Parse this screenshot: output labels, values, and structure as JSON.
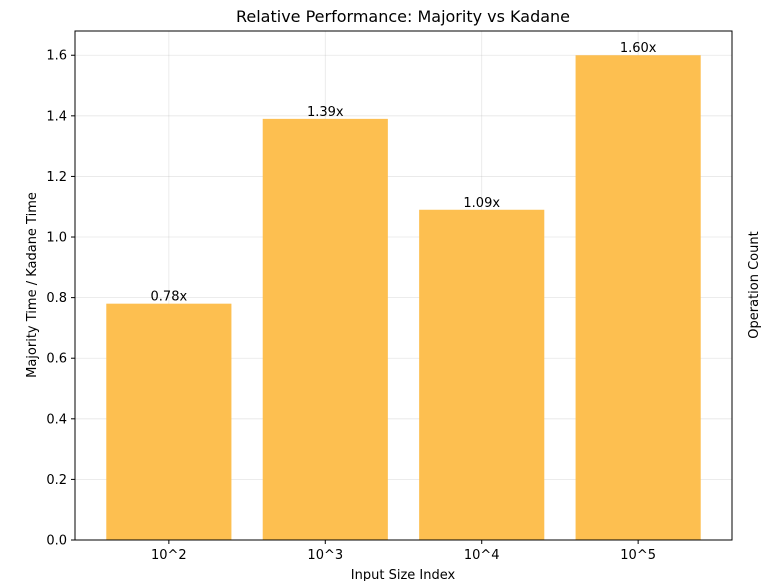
{
  "chart_data": {
    "type": "bar",
    "title": "Relative Performance: Majority vs Kadane",
    "xlabel": "Input Size Index",
    "ylabel": "Majority Time / Kadane Time",
    "right_label": "Operation Count",
    "categories": [
      "10^2",
      "10^3",
      "10^4",
      "10^5"
    ],
    "values": [
      0.78,
      1.39,
      1.09,
      1.6
    ],
    "data_labels": [
      "0.78x",
      "1.39x",
      "1.09x",
      "1.60x"
    ],
    "ylim": [
      0,
      1.68
    ],
    "yticks": [
      0.0,
      0.2,
      0.4,
      0.6,
      0.8,
      1.0,
      1.2,
      1.4,
      1.6
    ],
    "ytick_labels": [
      "0.0",
      "0.2",
      "0.4",
      "0.6",
      "0.8",
      "1.0",
      "1.2",
      "1.4",
      "1.6"
    ],
    "grid": true,
    "bar_color": "#fdbf50"
  }
}
